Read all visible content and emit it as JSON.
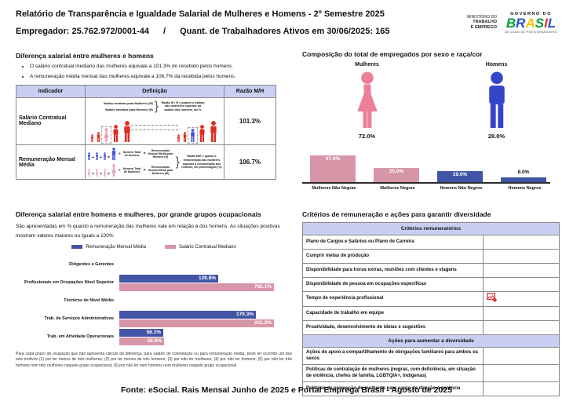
{
  "palette": {
    "pink_icon": "#EC7F99",
    "blue_icon": "#3644C8",
    "pink_bar": "#D795A8",
    "blue_bar": "#4254A5",
    "red_figure": "#E02B20",
    "pink_figure": "#EBA0B5",
    "blue_figure": "#4353D6",
    "header_lavender": "#C9CEF3",
    "broken_icon_red": "#E03131",
    "brasil_letters": [
      "#009C3B",
      "#2B50C8",
      "#F6C700",
      "#009C3B",
      "#E23B2E",
      "#2B50C8"
    ]
  },
  "header": {
    "title": "Relatório de Transparência e Igualdade Salarial de Mulheres e Homens - 2º Semestre 2025",
    "employer": "Empregador: 25.762.972/0001-44",
    "separator": "/",
    "active_workers": "Quant. de Trabalhadores Ativos em 30/06/2025: 165",
    "ministry": {
      "line1": "MINISTÉRIO DO",
      "line2": "TRABALHO",
      "line3": "E EMPREGO"
    },
    "government": {
      "top": "GOVERNO DO",
      "brand": "BRASIL",
      "tagline": "DO LADO DO POVO BRASILEIRO"
    }
  },
  "salary_gap": {
    "title": "Diferença salarial entre mulheres e homens",
    "bullets": [
      "O salário contratual mediano das mulheres equivale a 101.3% do recebido pelos homens.",
      "A remuneração média mensal das mulheres equivale a 106.7% da recebida pelos homens."
    ],
    "table": {
      "headers": [
        "Indicador",
        "Definição",
        "Razão M/H"
      ],
      "rows": [
        {
          "indicator": "Salário Contratual Mediano",
          "definition_lines": [
            "Salário mediano para Mulheres (M)",
            "Salário mediano para Homens (H)"
          ],
          "definition_note": "Razão M / H = quanto o salário das mulheres equivale ao salário dos homens, em %",
          "ratio": "101.3%"
        },
        {
          "indicator": "Remuneração Mensal Média",
          "formula_men": {
            "count": "Número Total de Homens",
            "result": "Remuneração Mensal Média para Homens (H)"
          },
          "formula_women": {
            "count": "Número Total de Mulheres",
            "result": "Remuneração Mensal Média para Mulheres (M)"
          },
          "operators": {
            "plus": "+",
            "equals": "=",
            "divide": "÷"
          },
          "definition_note": "Razão M/H = quanto a remuneração das mulheres equivale à remuneração dos homens, em porcentagem (%)",
          "ratio": "106.7%"
        }
      ]
    }
  },
  "composition": {
    "title": "Composição do total de empregados por sexo e raça/cor",
    "pictograms": [
      {
        "label": "Mulheres",
        "value": "72.0%",
        "icon": "woman-icon"
      },
      {
        "label": "Homens",
        "value": "28.0%",
        "icon": "man-icon"
      }
    ]
  },
  "occupational": {
    "title": "Diferença salarial entre homens e mulheres, por grande grupos ocupacionais",
    "description": "São apresentadas em % quanto a remuneração das mulheres vale em relação à dos homens. As situações positivas mostram valores maiores ou iguais a 100%",
    "footnote": "Para cada grupo de ocupação que não apresenta cálculo da diferença, para salário de contratação ou para remuneração média, pode ter ocorrido um dos seis motivos (1) por ter menos de três mulheres; (2) por ter menos de três homens; (3) por não ter mulheres; (4) por não ter homens; (5) por não ter três homens nem três mulheres naquele grupo ocupacional; (6) por não ter nem homens nem mulheres naquele grupo ocupacional"
  },
  "criteria": {
    "title": "Critérios de remuneração e ações para garantir diversidade",
    "items": [
      {
        "type": "header",
        "label": "Critérios remuneratórios"
      },
      {
        "type": "row",
        "label": "Plano de Cargos e Salários ou Plano de Carreira"
      },
      {
        "type": "row",
        "label": "Cumprir metas de produção"
      },
      {
        "type": "row",
        "label": "Disponibilidade para horas extras, reuniões com clientes e viagens"
      },
      {
        "type": "row",
        "label": "Disponibilidade de pessoa em ocupações específicas"
      },
      {
        "type": "row",
        "label": "Tempo de experiência profissional",
        "icon": "broken-image-icon"
      },
      {
        "type": "row",
        "label": "Capacidade de trabalho em equipe"
      },
      {
        "type": "row",
        "label": "Proatividade, desenvolvimento de ideias e sugestões"
      },
      {
        "type": "header",
        "label": "Ações para aumentar a diversidade"
      },
      {
        "type": "row",
        "label": "Ações de apoio a compartilhamento de obrigações familiares para ambos os sexos"
      },
      {
        "type": "row",
        "label": "Políticas de contratação de mulheres (negras, com deficiência, em situação de violência, chefes de família, LGBTQIA+, Indígenas)"
      },
      {
        "type": "row",
        "label": "Políticas de promoção de mulheres para cargo de direção e gerência"
      }
    ]
  },
  "footer": "Fonte: eSocial. Rais Mensal Junho de 2025 e Portal Emprega Brasil - Agosto de 2025",
  "chart_data": [
    {
      "id": "sex_race_composition",
      "type": "bar",
      "title": "Composição do total de empregados por sexo e raça/cor",
      "categories": [
        "Mulheres Não Negras",
        "Mulheres Negras",
        "Homens Não Negros",
        "Homens Negros"
      ],
      "values": [
        47.0,
        25.0,
        19.0,
        8.0
      ],
      "unit": "%",
      "bar_color_keys": [
        "pink_bar",
        "pink_bar",
        "blue_bar",
        "blue_bar"
      ],
      "ylim": [
        0,
        50
      ],
      "grid": false
    },
    {
      "id": "sex_pictogram",
      "type": "pictogram",
      "categories": [
        "Mulheres",
        "Homens"
      ],
      "values": [
        72.0,
        28.0
      ],
      "unit": "%"
    },
    {
      "id": "occupational_groups",
      "type": "bar",
      "orientation": "horizontal",
      "title": "Diferença salarial entre homens e mulheres, por grande grupos ocupacionais",
      "categories": [
        "Dirigentes e Gerentes",
        "Profissionais em Ocupações Nível Superior",
        "Técnicos de Nível Médio",
        "Trab. de Serviços Administrativos",
        "Trab. em Atividade Operacionais"
      ],
      "series": [
        {
          "name": "Remuneração Mensal Média",
          "color_key": "blue_bar",
          "values": [
            null,
            129.8,
            null,
            179.3,
            58.1
          ]
        },
        {
          "name": "Salário Contratual Mediano",
          "color_key": "pink_bar",
          "values": [
            null,
            792.1,
            null,
            251.2,
            58.8
          ]
        }
      ],
      "unit": "%",
      "x_clip_max": 200,
      "legend_position": "top",
      "grid": false
    }
  ]
}
